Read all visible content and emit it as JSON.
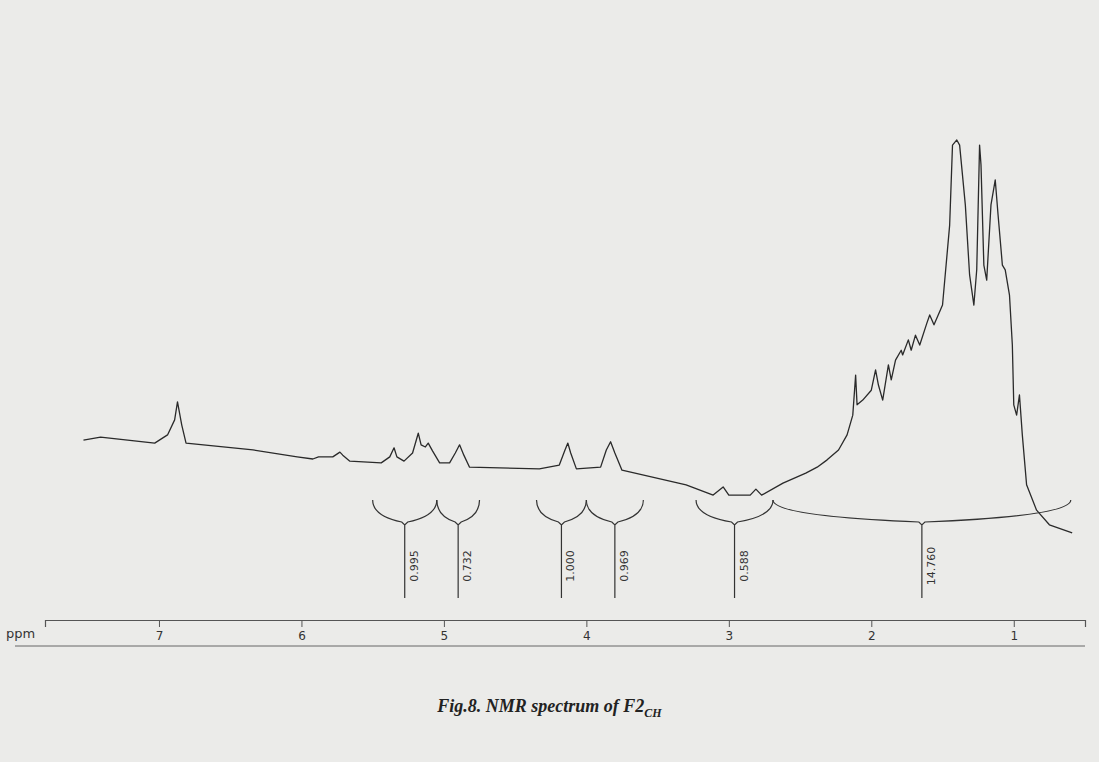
{
  "chart_data": {
    "type": "line",
    "title": {
      "text": "Fig.8. NMR spectrum of F2",
      "subscript": "CH"
    },
    "x_label": "ppm",
    "xlim": [
      7.8,
      0.5
    ],
    "xticks": [
      7,
      6,
      5,
      4,
      3,
      2,
      1
    ],
    "ylim": [
      0,
      100
    ],
    "tick_labels": "x",
    "grid": false,
    "color": "#2a2a2a",
    "x": [
      7.53,
      7.41,
      7.03,
      6.94,
      6.89,
      6.87,
      6.84,
      6.81,
      6.34,
      6.03,
      5.92,
      5.88,
      5.78,
      5.73,
      5.71,
      5.66,
      5.44,
      5.38,
      5.35,
      5.33,
      5.28,
      5.22,
      5.18,
      5.16,
      5.13,
      5.11,
      5.08,
      5.03,
      4.96,
      4.92,
      4.89,
      4.86,
      4.82,
      4.33,
      4.19,
      4.15,
      4.13,
      4.11,
      4.07,
      3.9,
      3.86,
      3.83,
      3.8,
      3.75,
      3.3,
      3.11,
      3.04,
      3.0,
      2.85,
      2.81,
      2.77,
      2.62,
      2.46,
      2.38,
      2.31,
      2.23,
      2.17,
      2.13,
      2.11,
      2.1,
      2.06,
      2.0,
      1.97,
      1.95,
      1.92,
      1.88,
      1.86,
      1.83,
      1.79,
      1.78,
      1.74,
      1.72,
      1.69,
      1.66,
      1.61,
      1.59,
      1.56,
      1.5,
      1.45,
      1.43,
      1.4,
      1.38,
      1.34,
      1.31,
      1.28,
      1.26,
      1.24,
      1.23,
      1.21,
      1.19,
      1.16,
      1.13,
      1.11,
      1.08,
      1.06,
      1.03,
      1.01,
      1.0,
      0.98,
      0.96,
      0.94,
      0.91,
      0.84,
      0.75,
      0.59
    ],
    "values": [
      24.4,
      25.1,
      23.7,
      25.6,
      29.1,
      33.3,
      27.9,
      23.7,
      22.1,
      20.5,
      20.0,
      20.5,
      20.5,
      21.6,
      20.9,
      19.5,
      19.1,
      20.5,
      22.6,
      20.5,
      19.5,
      21.4,
      26.0,
      23.3,
      22.8,
      23.7,
      21.9,
      19.1,
      19.1,
      21.4,
      23.3,
      20.9,
      18.1,
      17.7,
      18.6,
      22.1,
      23.7,
      21.4,
      17.7,
      18.1,
      22.1,
      24.0,
      21.4,
      17.4,
      14.0,
      11.6,
      13.5,
      11.6,
      11.6,
      13.0,
      11.6,
      14.4,
      16.7,
      18.1,
      19.8,
      22.1,
      25.6,
      30.2,
      39.5,
      32.6,
      33.7,
      36.0,
      40.7,
      37.2,
      33.7,
      41.9,
      38.4,
      43.0,
      45.3,
      44.2,
      47.7,
      45.3,
      48.8,
      46.5,
      51.6,
      53.5,
      51.2,
      55.8,
      74.4,
      93.0,
      94.2,
      93.0,
      79.1,
      62.8,
      55.8,
      64.0,
      93.0,
      88.4,
      65.1,
      61.6,
      79.1,
      84.9,
      76.7,
      65.1,
      64.0,
      58.1,
      46.5,
      32.6,
      30.2,
      34.9,
      25.6,
      14.0,
      8.1,
      4.7,
      2.8
    ],
    "integrals": [
      {
        "start": 5.5,
        "end": 5.05,
        "value": 0.995
      },
      {
        "start": 5.05,
        "end": 4.75,
        "value": 0.732
      },
      {
        "start": 4.35,
        "end": 4.0,
        "value": 1,
        "label": "1.000"
      },
      {
        "start": 4.0,
        "end": 3.6,
        "value": 0.969
      },
      {
        "start": 3.23,
        "end": 2.69,
        "value": 0.588
      },
      {
        "start": 2.69,
        "end": 0.6,
        "value": 14.76,
        "label": "14.760"
      }
    ]
  }
}
